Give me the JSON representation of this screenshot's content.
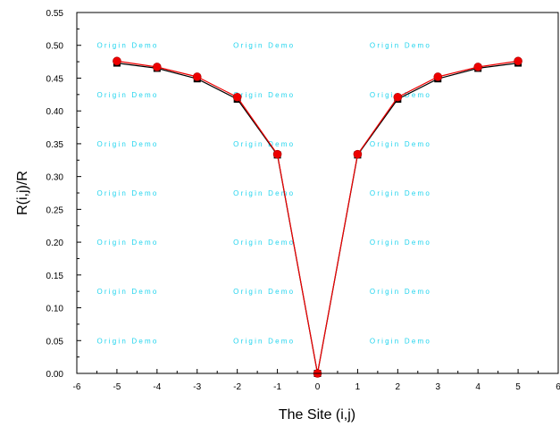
{
  "chart_data": {
    "type": "line",
    "xlabel": "The Site (i,j)",
    "ylabel": "R(i,j)/R",
    "xlim": [
      -6,
      6
    ],
    "ylim": [
      0,
      0.55
    ],
    "x_ticks": [
      -6,
      -5,
      -4,
      -3,
      -2,
      -1,
      0,
      1,
      2,
      3,
      4,
      5,
      6
    ],
    "y_ticks": [
      "0.00",
      "0.05",
      "0.10",
      "0.15",
      "0.20",
      "0.25",
      "0.30",
      "0.35",
      "0.40",
      "0.45",
      "0.50",
      "0.55"
    ],
    "grid": false,
    "legend": "none",
    "series": [
      {
        "marker": "square",
        "color": "#000000",
        "x": [
          -5,
          -4,
          -3,
          -2,
          -1,
          0,
          1,
          2,
          3,
          4,
          5
        ],
        "y": [
          0.473,
          0.465,
          0.449,
          0.418,
          0.333,
          0.0,
          0.333,
          0.418,
          0.449,
          0.465,
          0.473
        ]
      },
      {
        "marker": "circle",
        "color": "#ee0000",
        "x": [
          -5,
          -4,
          -3,
          -2,
          -1,
          0,
          1,
          2,
          3,
          4,
          5
        ],
        "y": [
          0.476,
          0.467,
          0.452,
          0.421,
          0.334,
          0.0,
          0.334,
          0.421,
          0.452,
          0.467,
          0.476
        ]
      }
    ]
  },
  "watermark": {
    "text": "Origin Demo",
    "color": "#22d4ee"
  }
}
